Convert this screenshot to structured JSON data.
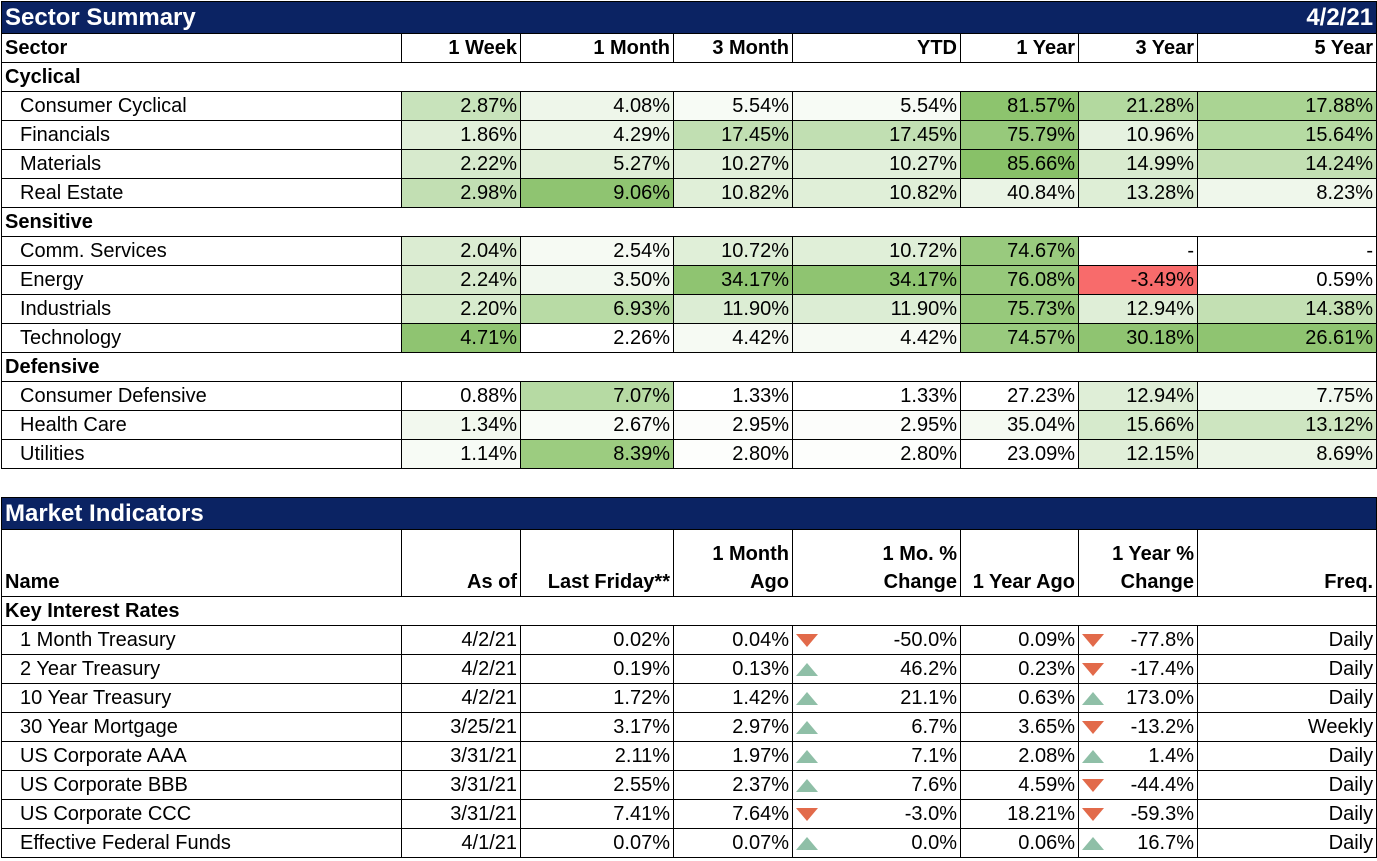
{
  "sector_summary": {
    "title": "Sector Summary",
    "date": "4/2/21",
    "headers": [
      "Sector",
      "1 Week",
      "1 Month",
      "3 Month",
      "YTD",
      "1 Year",
      "3 Year",
      "5 Year"
    ],
    "groups": [
      {
        "name": "Cyclical",
        "rows": [
          {
            "name": "Consumer Cyclical",
            "values": [
              "2.87%",
              "4.08%",
              "5.54%",
              "5.54%",
              "81.57%",
              "21.28%",
              "17.88%"
            ],
            "colors": [
              "#c8e3bb",
              "#eef6ea",
              "#f7fbf5",
              "#f7fbf5",
              "#8dc46e",
              "#b3d99f",
              "#aad493"
            ]
          },
          {
            "name": "Financials",
            "values": [
              "1.86%",
              "4.29%",
              "17.45%",
              "17.45%",
              "75.79%",
              "10.96%",
              "15.64%"
            ],
            "colors": [
              "#e1efd9",
              "#ecf5e7",
              "#c1dfb2",
              "#c1dfb2",
              "#97c97b",
              "#e6f2e0",
              "#b6dba3"
            ]
          },
          {
            "name": "Materials",
            "values": [
              "2.22%",
              "5.27%",
              "10.27%",
              "10.27%",
              "85.66%",
              "14.99%",
              "14.24%"
            ],
            "colors": [
              "#d7eacd",
              "#e1efd9",
              "#e2f0db",
              "#e2f0db",
              "#88c168",
              "#d9ebcf",
              "#c3e0b3"
            ]
          },
          {
            "name": "Real Estate",
            "values": [
              "2.98%",
              "9.06%",
              "10.82%",
              "10.82%",
              "40.84%",
              "13.28%",
              "8.23%"
            ],
            "colors": [
              "#c2dfb3",
              "#8fc471",
              "#e0efd8",
              "#e0efd8",
              "#eaf4e5",
              "#deeed6",
              "#eff7eb"
            ]
          }
        ]
      },
      {
        "name": "Sensitive",
        "rows": [
          {
            "name": "Comm. Services",
            "values": [
              "2.04%",
              "2.54%",
              "10.72%",
              "10.72%",
              "74.67%",
              "-",
              "-"
            ],
            "colors": [
              "#dbecd2",
              "#f6faf3",
              "#e0efd8",
              "#e0efd8",
              "#99ca7e",
              "#ffffff",
              "#ffffff"
            ]
          },
          {
            "name": "Energy",
            "values": [
              "2.24%",
              "3.50%",
              "34.17%",
              "34.17%",
              "76.08%",
              "-3.49%",
              "0.59%"
            ],
            "colors": [
              "#d7eacd",
              "#f1f8ee",
              "#8fc471",
              "#8fc471",
              "#97c97b",
              "#f86b6b",
              "#ffffff"
            ]
          },
          {
            "name": "Industrials",
            "values": [
              "2.20%",
              "6.93%",
              "11.90%",
              "11.90%",
              "75.73%",
              "12.94%",
              "14.38%"
            ],
            "colors": [
              "#d8ebce",
              "#b8dba5",
              "#dcedd4",
              "#dcedd4",
              "#97c97b",
              "#dfeed7",
              "#c3e0b3"
            ]
          },
          {
            "name": "Technology",
            "values": [
              "4.71%",
              "2.26%",
              "4.42%",
              "4.42%",
              "74.57%",
              "30.18%",
              "26.61%"
            ],
            "colors": [
              "#8fc471",
              "#ffffff",
              "#f6faf3",
              "#f6faf3",
              "#99ca7e",
              "#8fc471",
              "#8fc471"
            ]
          }
        ]
      },
      {
        "name": "Defensive",
        "rows": [
          {
            "name": "Consumer Defensive",
            "values": [
              "0.88%",
              "7.07%",
              "1.33%",
              "1.33%",
              "27.23%",
              "12.94%",
              "7.75%"
            ],
            "colors": [
              "#ffffff",
              "#b6daa3",
              "#ffffff",
              "#ffffff",
              "#ffffff",
              "#dfeed7",
              "#f2f9ef"
            ]
          },
          {
            "name": "Health Care",
            "values": [
              "1.34%",
              "2.67%",
              "2.95%",
              "2.95%",
              "35.04%",
              "15.66%",
              "13.12%"
            ],
            "colors": [
              "#f2f8ee",
              "#f9fcf7",
              "#fcfdfb",
              "#fcfdfb",
              "#f5faf2",
              "#d6eacc",
              "#cde5c0"
            ]
          },
          {
            "name": "Utilities",
            "values": [
              "1.14%",
              "8.39%",
              "2.80%",
              "2.80%",
              "23.09%",
              "12.15%",
              "8.69%"
            ],
            "colors": [
              "#f7fbf5",
              "#9ccc80",
              "#fdfefc",
              "#fdfefc",
              "#ffffff",
              "#e1efd9",
              "#ecf5e7"
            ]
          }
        ]
      }
    ]
  },
  "market_indicators": {
    "title": "Market Indicators",
    "headers": [
      "Name",
      "As of",
      "Last Friday**",
      "1 Month Ago",
      "1 Mo. % Change",
      "1 Year Ago",
      "1 Year % Change",
      "Freq."
    ],
    "headers_multiline": {
      "h3_line1": "1 Month",
      "h3_line2": "Ago",
      "h4_line1": "1 Mo. %",
      "h4_line2": "Change",
      "h6_line1": "1 Year %",
      "h6_line2": "Change"
    },
    "group": "Key Interest Rates",
    "rows": [
      {
        "name": "1 Month Treasury",
        "as_of": "4/2/21",
        "last_friday": "0.02%",
        "month_ago": "0.04%",
        "mo_dir": "down",
        "mo_change": "-50.0%",
        "year_ago": "0.09%",
        "yr_dir": "down",
        "yr_change": "-77.8%",
        "freq": "Daily"
      },
      {
        "name": "2 Year Treasury",
        "as_of": "4/2/21",
        "last_friday": "0.19%",
        "month_ago": "0.13%",
        "mo_dir": "up",
        "mo_change": "46.2%",
        "year_ago": "0.23%",
        "yr_dir": "down",
        "yr_change": "-17.4%",
        "freq": "Daily"
      },
      {
        "name": "10 Year Treasury",
        "as_of": "4/2/21",
        "last_friday": "1.72%",
        "month_ago": "1.42%",
        "mo_dir": "up",
        "mo_change": "21.1%",
        "year_ago": "0.63%",
        "yr_dir": "up",
        "yr_change": "173.0%",
        "freq": "Daily"
      },
      {
        "name": "30 Year Mortgage",
        "as_of": "3/25/21",
        "last_friday": "3.17%",
        "month_ago": "2.97%",
        "mo_dir": "up",
        "mo_change": "6.7%",
        "year_ago": "3.65%",
        "yr_dir": "down",
        "yr_change": "-13.2%",
        "freq": "Weekly"
      },
      {
        "name": "US Corporate AAA",
        "as_of": "3/31/21",
        "last_friday": "2.11%",
        "month_ago": "1.97%",
        "mo_dir": "up",
        "mo_change": "7.1%",
        "year_ago": "2.08%",
        "yr_dir": "up",
        "yr_change": "1.4%",
        "freq": "Daily"
      },
      {
        "name": "US Corporate BBB",
        "as_of": "3/31/21",
        "last_friday": "2.55%",
        "month_ago": "2.37%",
        "mo_dir": "up",
        "mo_change": "7.6%",
        "year_ago": "4.59%",
        "yr_dir": "down",
        "yr_change": "-44.4%",
        "freq": "Daily"
      },
      {
        "name": "US Corporate CCC",
        "as_of": "3/31/21",
        "last_friday": "7.41%",
        "month_ago": "7.64%",
        "mo_dir": "down",
        "mo_change": "-3.0%",
        "year_ago": "18.21%",
        "yr_dir": "down",
        "yr_change": "-59.3%",
        "freq": "Daily"
      },
      {
        "name": "Effective Federal Funds",
        "as_of": "4/1/21",
        "last_friday": "0.07%",
        "month_ago": "0.07%",
        "mo_dir": "up",
        "mo_change": "0.0%",
        "year_ago": "0.06%",
        "yr_dir": "up",
        "yr_change": "16.7%",
        "freq": "Daily"
      }
    ]
  },
  "colors": {
    "title_bar": "#0b2363",
    "up_arrow": "#8fbfa7",
    "down_arrow": "#e26a4a"
  }
}
